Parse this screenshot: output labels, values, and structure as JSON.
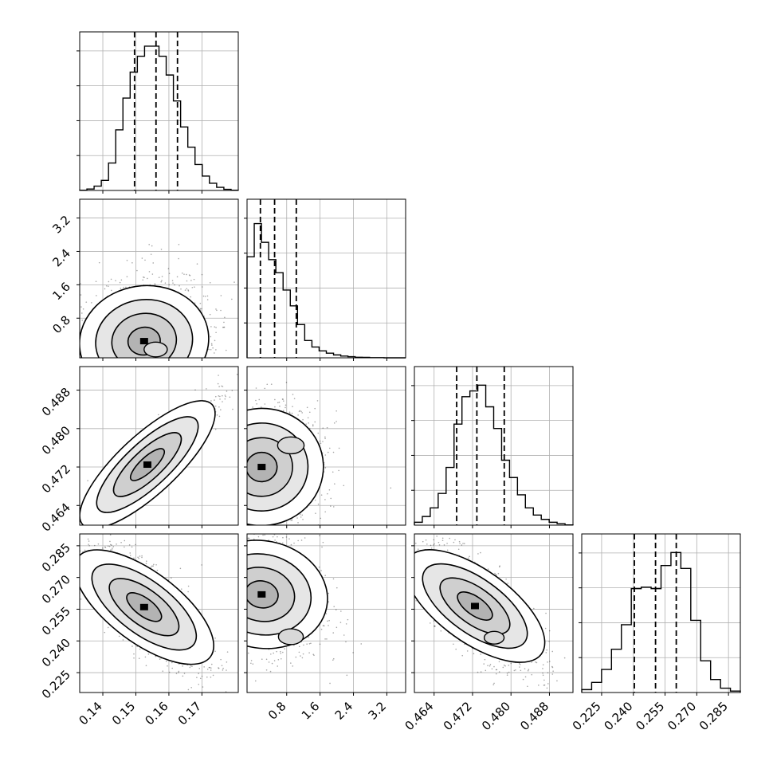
{
  "chart_data": {
    "type": "corner",
    "parameters": 4,
    "params": [
      {
        "range": [
          0.133,
          0.181
        ],
        "ticks": [
          0.14,
          0.15,
          0.16,
          0.17
        ],
        "tick_labels": [
          "0.14",
          "0.15",
          "0.16",
          "0.17"
        ],
        "quantiles": [
          0.1496,
          0.1561,
          0.1626
        ],
        "hist_bins": [
          0.002,
          0.01,
          0.03,
          0.07,
          0.19,
          0.42,
          0.64,
          0.82,
          0.93,
          1.0,
          1.0,
          0.93,
          0.8,
          0.62,
          0.44,
          0.3,
          0.18,
          0.1,
          0.05,
          0.022,
          0.008,
          0.002
        ]
      },
      {
        "range": [
          -0.15,
          3.65
        ],
        "ticks": [
          0.8,
          1.6,
          2.4,
          3.2
        ],
        "tick_labels": [
          "0.8",
          "1.6",
          "2.4",
          "3.2"
        ],
        "quantiles": [
          0.17,
          0.51,
          1.03
        ],
        "hist_bins": [
          0.7,
          0.93,
          0.8,
          0.68,
          0.59,
          0.47,
          0.36,
          0.23,
          0.12,
          0.075,
          0.048,
          0.032,
          0.02,
          0.012,
          0.008,
          0.004,
          0.003,
          0.001,
          0.001,
          0.0,
          0.0,
          0.0
        ]
      },
      {
        "range": [
          0.4599,
          0.4929
        ],
        "ticks": [
          0.464,
          0.472,
          0.48,
          0.488
        ],
        "tick_labels": [
          "0.464",
          "0.472",
          "0.480",
          "0.488"
        ],
        "quantiles": [
          0.4687,
          0.4729,
          0.4786
        ],
        "hist_bins": [
          0.02,
          0.06,
          0.12,
          0.22,
          0.4,
          0.7,
          0.89,
          0.93,
          0.97,
          0.82,
          0.67,
          0.45,
          0.33,
          0.21,
          0.12,
          0.07,
          0.04,
          0.02,
          0.01,
          0.002
        ]
      },
      {
        "range": [
          0.2156,
          0.2906
        ],
        "ticks": [
          0.225,
          0.24,
          0.255,
          0.27,
          0.285
        ],
        "tick_labels": [
          "0.225",
          "0.240",
          "0.255",
          "0.270",
          "0.285"
        ],
        "quantiles": [
          0.2405,
          0.2505,
          0.2603
        ],
        "hist_bins": [
          0.02,
          0.07,
          0.16,
          0.3,
          0.47,
          0.72,
          0.73,
          0.72,
          0.88,
          0.97,
          0.86,
          0.5,
          0.22,
          0.09,
          0.03,
          0.01
        ]
      }
    ],
    "pairs": [
      {
        "x": 0,
        "y": 1,
        "mode": [
          0.1525,
          0.25
        ],
        "corr": 0.15,
        "extra": [
          [
            0.156,
            0.05,
            0.7
          ]
        ]
      },
      {
        "x": 0,
        "y": 2,
        "mode": [
          0.1535,
          0.4725
        ],
        "corr": 0.93
      },
      {
        "x": 1,
        "y": 2,
        "mode": [
          0.2,
          0.472
        ],
        "corr": 0.05,
        "extra": [
          [
            0.9,
            0.4765,
            0.8
          ]
        ]
      },
      {
        "x": 0,
        "y": 3,
        "mode": [
          0.1525,
          0.256
        ],
        "corr": -0.75
      },
      {
        "x": 1,
        "y": 3,
        "mode": [
          0.2,
          0.262
        ],
        "corr": -0.2,
        "extra": [
          [
            0.9,
            0.242,
            0.75
          ]
        ]
      },
      {
        "x": 2,
        "y": 3,
        "mode": [
          0.4725,
          0.2565
        ],
        "corr": -0.72,
        "extra": [
          [
            0.4765,
            0.2415,
            0.6
          ]
        ]
      }
    ],
    "contour_levels": [
      "0.5 sigma",
      "1 sigma",
      "1.5 sigma",
      "2 sigma"
    ],
    "grid": true,
    "legend": "none",
    "colors": {
      "hist": "#000000",
      "points": "#000000",
      "fill": "#808080"
    }
  }
}
